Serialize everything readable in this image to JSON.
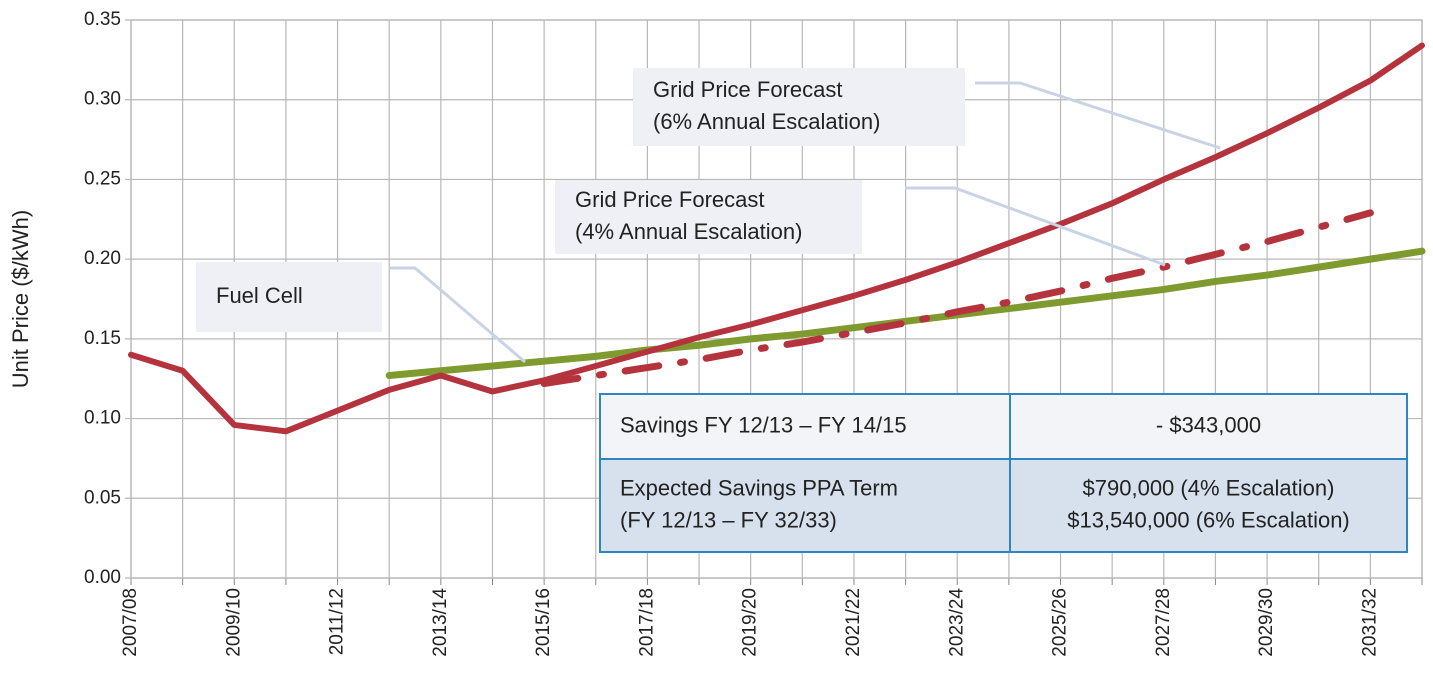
{
  "chart_data": {
    "type": "line",
    "y_label": "Unit Price ($/kWh)",
    "categories": [
      "2007/08",
      null,
      "2009/10",
      null,
      "2011/12",
      null,
      "2013/14",
      null,
      "2015/16",
      null,
      "2017/18",
      null,
      "2019/20",
      null,
      "2021/22",
      null,
      "2023/24",
      null,
      "2025/26",
      null,
      "2027/28",
      null,
      "2029/30",
      null,
      "2031/32",
      null
    ],
    "ylim": [
      0,
      0.35
    ],
    "yticks": [
      {
        "value": 0,
        "label": "0.00"
      },
      {
        "value": 0.05,
        "label": "0.05"
      },
      {
        "value": 0.1,
        "label": "0.10"
      },
      {
        "value": 0.15,
        "label": "0.15"
      },
      {
        "value": 0.2,
        "label": "0.20"
      },
      {
        "value": 0.25,
        "label": "0.25"
      },
      {
        "value": 0.3,
        "label": "0.30"
      },
      {
        "value": 0.35,
        "label": "0.35"
      }
    ],
    "grid": true,
    "series": [
      {
        "color": "#7f9a2e",
        "dash": "solid",
        "values": [
          null,
          null,
          null,
          null,
          null,
          0.127,
          0.13,
          0.133,
          0.136,
          0.139,
          0.143,
          0.146,
          0.15,
          0.153,
          0.157,
          0.161,
          0.165,
          0.169,
          0.173,
          0.177,
          0.181,
          0.186,
          0.19,
          0.195,
          0.2,
          0.205
        ]
      },
      {
        "color": "#b5333d",
        "dash": "dashdot",
        "values": [
          null,
          null,
          null,
          null,
          null,
          null,
          null,
          null,
          0.122,
          0.127,
          0.132,
          0.137,
          0.143,
          0.148,
          0.154,
          0.16,
          0.167,
          0.173,
          0.18,
          0.188,
          0.195,
          0.203,
          0.211,
          0.22,
          0.229,
          null
        ]
      },
      {
        "color": "#b5333d",
        "dash": "solid",
        "values": [
          0.14,
          0.13,
          0.096,
          0.092,
          0.105,
          0.118,
          0.127,
          0.117,
          0.124,
          0.133,
          0.142,
          0.151,
          0.159,
          0.168,
          0.177,
          0.187,
          0.198,
          0.21,
          0.222,
          0.235,
          0.25,
          0.264,
          0.279,
          0.295,
          0.312,
          0.334
        ]
      }
    ],
    "annotations": [
      [
        "Grid Price Forecast",
        "(6% Annual Escalation)"
      ],
      [
        "Grid Price Forecast",
        "(4% Annual Escalation)"
      ],
      [
        "Fuel Cell"
      ]
    ],
    "table": [
      [
        [
          "Savings FY 12/13 – FY 14/15"
        ],
        [
          "- $343,000"
        ]
      ],
      [
        [
          "Expected Savings PPA Term",
          "(FY 12/13 – FY 32/33)"
        ],
        [
          "$790,000 (4% Escalation)",
          "$13,540,000 (6% Escalation)"
        ]
      ]
    ]
  }
}
